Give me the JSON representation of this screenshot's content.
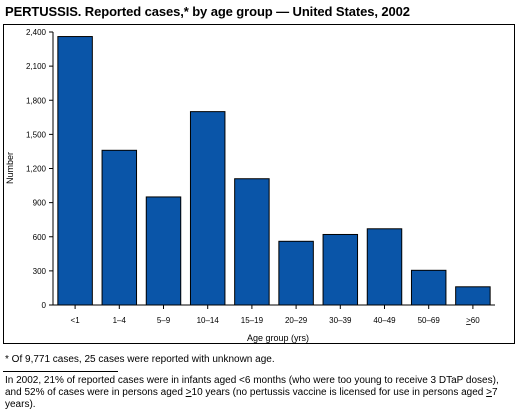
{
  "title": "PERTUSSIS. Reported cases,* by age group — United States, 2002",
  "chart_data": {
    "type": "bar",
    "categories": [
      "<1",
      "1–4",
      "5–9",
      "10–14",
      "15–19",
      "20–29",
      "30–39",
      "40–49",
      "50–69",
      "≥60"
    ],
    "values": [
      2360,
      1360,
      950,
      1700,
      1110,
      560,
      620,
      670,
      305,
      160
    ],
    "xlabel": "Age group (yrs)",
    "ylabel": "Number",
    "ylim": [
      0,
      2400
    ],
    "yticks": [
      0,
      300,
      600,
      900,
      1200,
      1500,
      1800,
      2100,
      2400
    ],
    "ytick_labels": [
      "0",
      "300",
      "600",
      "900",
      "1,200",
      "1,500",
      "1,800",
      "2,100",
      "2,400"
    ],
    "bar_color": "#0a55a8",
    "grid": false
  },
  "footnote": "* Of 9,771 cases, 25 cases were reported with unknown age.",
  "note": {
    "part1": "In 2002, 21% of reported cases were in infants aged <6 months (who were too young to receive 3 DTaP doses), and 52% of cases were in persons aged ",
    "sym1": ">",
    "part2": "10 years (no pertussis vaccine is licensed for use in persons aged ",
    "sym2": ">",
    "part3": "7 years)."
  }
}
